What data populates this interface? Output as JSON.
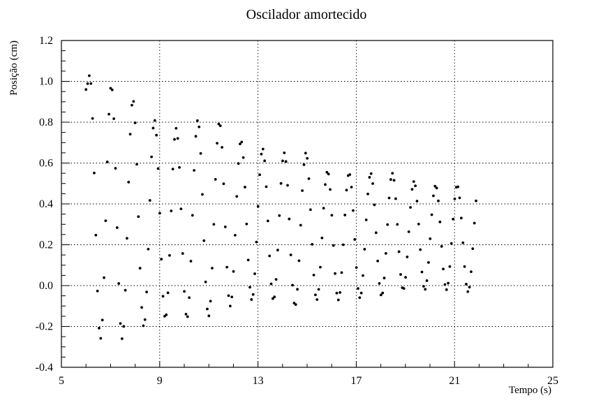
{
  "chart_data": {
    "type": "scatter",
    "title": "Oscilador amortecido",
    "xlabel": "Tempo (s)",
    "ylabel": "Posição (cm)",
    "xlim": [
      5,
      25
    ],
    "ylim": [
      -0.4,
      1.2
    ],
    "xticks": [
      5,
      9,
      13,
      17,
      21,
      25
    ],
    "yticks": [
      -0.4,
      -0.2,
      0.0,
      0.2,
      0.4,
      0.6,
      0.8,
      1.0,
      1.2
    ],
    "grid": true,
    "legend": "none",
    "marker_color": "#000000",
    "oscillation": {
      "start_time": 6.0,
      "end_time": 21.9,
      "period": 0.88,
      "first_peak_time": 6.15,
      "peaks": [
        1.03,
        0.98,
        0.91,
        0.81,
        0.77,
        0.81,
        0.8,
        0.71,
        0.67,
        0.65,
        0.65,
        0.56,
        0.55,
        0.55,
        0.55,
        0.51,
        0.49,
        0.49,
        0.5,
        0.45,
        0.42
      ],
      "troughs": [
        -0.26,
        -0.26,
        -0.2,
        -0.16,
        -0.16,
        -0.15,
        -0.1,
        -0.07,
        -0.07,
        -0.1,
        -0.07,
        -0.07,
        -0.06,
        -0.05,
        -0.02,
        -0.02,
        -0.02,
        -0.03,
        -0.03,
        -0.01
      ]
    }
  }
}
